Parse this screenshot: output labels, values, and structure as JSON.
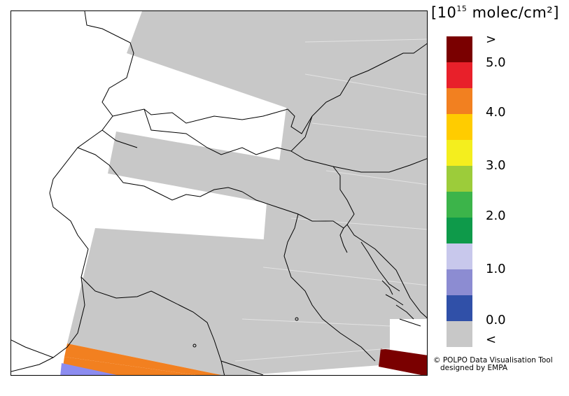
{
  "legend": {
    "unit_prefix": "[10",
    "unit_exponent": "15",
    "unit_suffix": " molec/cm²]",
    "labels": {
      "above": ">",
      "v5": "5.0",
      "v4": "4.0",
      "v3": "3.0",
      "v2": "2.0",
      "v1": "1.0",
      "v0": "0.0",
      "below": "<"
    },
    "colors": {
      "above": "#7a0000",
      "c1": "#e8202a",
      "c2": "#f28020",
      "c3": "#ffcc00",
      "c4": "#f4ee1e",
      "c5": "#9ccc3a",
      "c6": "#3cb44a",
      "c7": "#0e9a4a",
      "c8": "#c8c8ec",
      "c9": "#8c8cd2",
      "c10": "#3050a8",
      "below": "#c8c8c8"
    }
  },
  "credit": {
    "line1": "© POLPO Data Visualisation Tool",
    "line2": "designed by EMPA"
  }
}
